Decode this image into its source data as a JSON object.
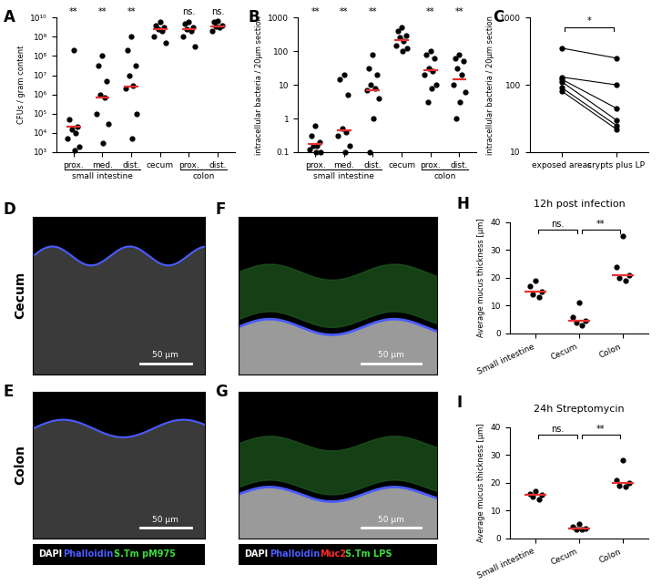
{
  "chart_data": [
    {
      "panel": "A",
      "type": "scatter",
      "color": "#000000",
      "categories": [
        "prox.",
        "med.",
        "dist.",
        "cecum",
        "prox.",
        "dist."
      ],
      "group_labels": [
        "small intestine",
        "small intestine",
        "small intestine",
        null,
        "colon",
        "colon"
      ],
      "values": [
        [
          200000000,
          50000,
          20000,
          15000,
          10000,
          5000,
          2000,
          1200
        ],
        [
          100000000,
          30000000,
          5000000,
          1000000,
          700000,
          100000,
          30000,
          3000
        ],
        [
          1000000000,
          200000000,
          30000000,
          10000000,
          3000000,
          2000000,
          100000,
          5000
        ],
        [
          6000000000,
          4000000000,
          3000000000,
          2500000000,
          2000000000,
          1000000000,
          500000000
        ],
        [
          6000000000,
          5000000000,
          3000000000,
          2500000000,
          2000000000,
          1000000000,
          300000000
        ],
        [
          7000000000,
          6000000000,
          4000000000,
          3500000000,
          3000000000,
          2000000000
        ]
      ],
      "medians": [
        20000,
        700000,
        2500000,
        2500000000,
        2500000000,
        3500000000
      ],
      "significance": [
        "**",
        "**",
        "**",
        null,
        "ns.",
        "ns."
      ],
      "y_label": "CFUs / gram content",
      "log": "y",
      "ylim": [
        1000,
        10000000000
      ],
      "yticks": [
        {
          "value": 1000,
          "label": "10³"
        },
        {
          "value": 10000,
          "label": "10⁴"
        },
        {
          "value": 100000,
          "label": "10⁵"
        },
        {
          "value": 1000000,
          "label": "10⁶"
        },
        {
          "value": 10000000,
          "label": "10⁷"
        },
        {
          "value": 100000000,
          "label": "10⁸"
        },
        {
          "value": 1000000000,
          "label": "10⁹"
        },
        {
          "value": 10000000000,
          "label": "10¹⁰"
        }
      ]
    },
    {
      "panel": "B",
      "type": "scatter",
      "color": "#000000",
      "categories": [
        "prox.",
        "med.",
        "dist.",
        "cecum",
        "prox.",
        "dist."
      ],
      "group_labels": [
        "small intestine",
        "small intestine",
        "small intestine",
        null,
        "colon",
        "colon"
      ],
      "values": [
        [
          0.6,
          0.3,
          0.2,
          0.15,
          0.15,
          0.12,
          0.1,
          0.1
        ],
        [
          20,
          15,
          5,
          0.5,
          0.4,
          0.3,
          0.15,
          0.1
        ],
        [
          80,
          30,
          20,
          10,
          8,
          7,
          4,
          1,
          0.1
        ],
        [
          500,
          400,
          300,
          250,
          200,
          150,
          120,
          100
        ],
        [
          100,
          80,
          60,
          30,
          25,
          20,
          10,
          8,
          3
        ],
        [
          80,
          60,
          50,
          30,
          20,
          10,
          6,
          3,
          1
        ]
      ],
      "medians": [
        0.17,
        0.45,
        7,
        220,
        28,
        15
      ],
      "significance": [
        "**",
        "**",
        "**",
        null,
        "**",
        "**"
      ],
      "y_label": "intracellular bacteria / 20µm section",
      "log": "y",
      "ylim": [
        0.1,
        1000
      ],
      "yticks": [
        0.1,
        1,
        10,
        100,
        1000
      ]
    },
    {
      "panel": "C",
      "type": "line",
      "color": "#000000",
      "marker": "o",
      "categories": [
        "exposed areas",
        "crypts plus LP"
      ],
      "pairs": [
        [
          350,
          250
        ],
        [
          130,
          100
        ],
        [
          120,
          45
        ],
        [
          110,
          30
        ],
        [
          90,
          25
        ],
        [
          80,
          22
        ]
      ],
      "comparisons": [
        {
          "from": "exposed areas",
          "to": "crypts plus LP",
          "label": "*"
        }
      ],
      "y_label": "intracellular bacteria / 20µm section",
      "log": "y",
      "ylim": [
        10,
        1000
      ],
      "yticks": [
        10,
        100,
        1000
      ]
    },
    {
      "panel": "H",
      "type": "scatter",
      "color": "#000000",
      "title": "12h post infection",
      "categories": [
        "Small intestine",
        "Cecum",
        "Colon"
      ],
      "values": [
        [
          19,
          17,
          15,
          14,
          13
        ],
        [
          11,
          6,
          4.5,
          4,
          3
        ],
        [
          35,
          24,
          21,
          20,
          19
        ]
      ],
      "medians": [
        15,
        4.5,
        21
      ],
      "comparisons": [
        {
          "from": "Small intestine",
          "to": "Cecum",
          "label": "ns."
        },
        {
          "from": "Cecum",
          "to": "Colon",
          "label": "**"
        }
      ],
      "y_label": "Average mucus thickness [µm]",
      "ylim": [
        0,
        40
      ],
      "yticks": [
        0,
        10,
        20,
        30,
        40
      ]
    },
    {
      "panel": "I",
      "type": "scatter",
      "color": "#000000",
      "title": "24h Streptomycin",
      "categories": [
        "Small intestine",
        "Cecum",
        "Colon"
      ],
      "values": [
        [
          17,
          16,
          15.5,
          15,
          14
        ],
        [
          5,
          4,
          3.5,
          3,
          3
        ],
        [
          28,
          21,
          20,
          19,
          18.5
        ]
      ],
      "medians": [
        15.5,
        3.5,
        20
      ],
      "comparisons": [
        {
          "from": "Small intestine",
          "to": "Cecum",
          "label": "ns."
        },
        {
          "from": "Cecum",
          "to": "Colon",
          "label": "**"
        }
      ],
      "y_label": "Average mucus thickness [µm]",
      "ylim": [
        0,
        40
      ],
      "yticks": [
        0,
        10,
        20,
        30,
        40
      ]
    }
  ],
  "images": [
    {
      "panel": "D",
      "row_label": "Cecum",
      "scale_bar": "50 µm"
    },
    {
      "panel": "E",
      "row_label": "Colon",
      "scale_bar": "50 µm",
      "legend": [
        {
          "text": "DAPI",
          "color": "#ffffff"
        },
        {
          "text": "Phalloidin",
          "color": "#4a5cff"
        },
        {
          "text": "S.Tm pM975",
          "color": "#3ddc3d"
        }
      ]
    },
    {
      "panel": "F",
      "scale_bar": "50 µm"
    },
    {
      "panel": "G",
      "scale_bar": "50 µm",
      "legend": [
        {
          "text": "DAPI",
          "color": "#ffffff"
        },
        {
          "text": "Phalloidin",
          "color": "#4a5cff"
        },
        {
          "text": "Muc2",
          "color": "#ff2a2a"
        },
        {
          "text": "S.Tm LPS",
          "color": "#3ddc3d"
        }
      ]
    }
  ]
}
